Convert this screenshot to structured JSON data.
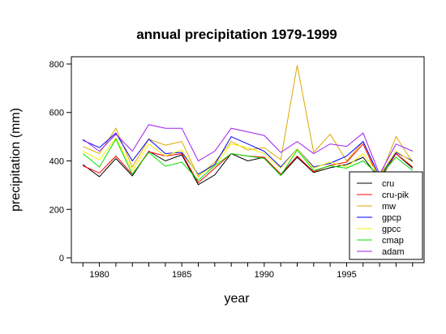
{
  "chart_data": {
    "type": "line",
    "title": "annual precipitation 1979-1999",
    "xlabel": "year",
    "ylabel": "precipitation (mm)",
    "xlim": [
      1978.3,
      1999.7
    ],
    "ylim": [
      -20,
      830
    ],
    "x_ticks": [
      "1980",
      "1985",
      "1990",
      "1995"
    ],
    "y_ticks": [
      "0",
      "200",
      "400",
      "600",
      "800"
    ],
    "legend_position": "bottom-right",
    "grid": false,
    "x": [
      1979,
      1980,
      1981,
      1982,
      1983,
      1984,
      1985,
      1986,
      1987,
      1988,
      1989,
      1990,
      1991,
      1992,
      1993,
      1994,
      1995,
      1996,
      1997,
      1998,
      1999
    ],
    "series": [
      {
        "name": "cru",
        "color": "#000000",
        "values": [
          385,
          335,
          410,
          338,
          440,
          400,
          425,
          302,
          342,
          430,
          400,
          415,
          340,
          415,
          352,
          372,
          385,
          415,
          325,
          430,
          370
        ]
      },
      {
        "name": "cru-pik",
        "color": "#ff0000",
        "values": [
          380,
          350,
          420,
          345,
          438,
          420,
          430,
          310,
          370,
          430,
          420,
          415,
          345,
          420,
          355,
          382,
          395,
          470,
          320,
          430,
          375
        ]
      },
      {
        "name": "mw",
        "color": "#dda800",
        "values": [
          460,
          430,
          535,
          375,
          490,
          465,
          480,
          335,
          395,
          480,
          445,
          455,
          405,
          795,
          435,
          510,
          400,
          480,
          330,
          500,
          395
        ]
      },
      {
        "name": "gpcp",
        "color": "#0000ff",
        "values": [
          485,
          455,
          515,
          400,
          490,
          430,
          435,
          345,
          385,
          500,
          470,
          440,
          375,
          450,
          375,
          390,
          420,
          480,
          335,
          435,
          400
        ]
      },
      {
        "name": "gpcc",
        "color": "#f0f000",
        "values": [
          440,
          405,
          495,
          360,
          470,
          420,
          445,
          340,
          380,
          470,
          455,
          430,
          370,
          450,
          370,
          395,
          375,
          430,
          340,
          440,
          395
        ]
      },
      {
        "name": "cmap",
        "color": "#00e000",
        "values": [
          430,
          375,
          490,
          345,
          435,
          378,
          395,
          320,
          380,
          430,
          420,
          410,
          340,
          445,
          360,
          380,
          370,
          400,
          338,
          415,
          360
        ]
      },
      {
        "name": "adam",
        "color": "#a020f0",
        "values": [
          490,
          440,
          510,
          440,
          550,
          535,
          535,
          400,
          440,
          535,
          520,
          505,
          435,
          480,
          430,
          470,
          460,
          515,
          345,
          470,
          440
        ]
      }
    ]
  }
}
